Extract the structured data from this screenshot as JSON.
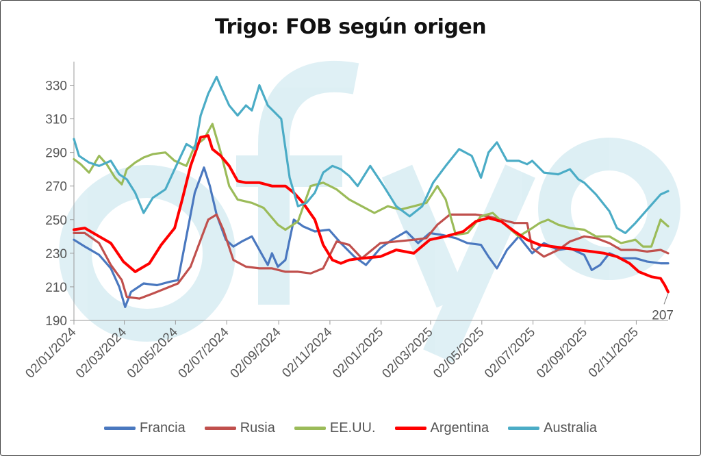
{
  "chart_data": {
    "type": "line",
    "title": "Trigo: FOB según origen",
    "xlabel": "",
    "ylabel": "",
    "ylim": [
      190,
      340
    ],
    "yticks": [
      190,
      210,
      230,
      250,
      270,
      290,
      310,
      330
    ],
    "xlim": [
      "2024-01-02",
      "2025-12-10"
    ],
    "xticks": [
      "02/01/2024",
      "02/03/2024",
      "02/05/2024",
      "02/07/2024",
      "02/09/2024",
      "02/11/2024",
      "02/01/2025",
      "02/03/2025",
      "02/05/2025",
      "02/07/2025",
      "02/09/2025",
      "02/11/2025"
    ],
    "annotation": "207",
    "legend_position": "bottom",
    "series": [
      {
        "name": "Francia",
        "color": "#4a78bf",
        "x": [
          "2024-01-02",
          "2024-01-15",
          "2024-02-01",
          "2024-02-15",
          "2024-02-25",
          "2024-03-03",
          "2024-03-10",
          "2024-03-25",
          "2024-04-10",
          "2024-04-25",
          "2024-05-05",
          "2024-05-15",
          "2024-05-25",
          "2024-06-05",
          "2024-06-12",
          "2024-06-20",
          "2024-07-01",
          "2024-07-10",
          "2024-07-20",
          "2024-08-01",
          "2024-08-10",
          "2024-08-20",
          "2024-08-25",
          "2024-09-01",
          "2024-09-10",
          "2024-09-20",
          "2024-10-01",
          "2024-10-15",
          "2024-11-01",
          "2024-11-15",
          "2024-12-01",
          "2024-12-15",
          "2025-01-01",
          "2025-01-15",
          "2025-02-01",
          "2025-02-15",
          "2025-03-01",
          "2025-03-15",
          "2025-04-01",
          "2025-04-15",
          "2025-05-01",
          "2025-05-10",
          "2025-05-20",
          "2025-06-01",
          "2025-06-15",
          "2025-07-01",
          "2025-07-15",
          "2025-08-01",
          "2025-08-15",
          "2025-09-01",
          "2025-09-10",
          "2025-09-20",
          "2025-10-01",
          "2025-10-15",
          "2025-11-01",
          "2025-11-15",
          "2025-12-01",
          "2025-12-10"
        ],
        "values": [
          238,
          234,
          229,
          221,
          210,
          198,
          207,
          212,
          211,
          213,
          214,
          240,
          266,
          281,
          270,
          253,
          238,
          234,
          237,
          240,
          232,
          223,
          230,
          222,
          226,
          250,
          246,
          243,
          244,
          236,
          228,
          223,
          233,
          238,
          243,
          236,
          242,
          241,
          239,
          236,
          235,
          228,
          221,
          232,
          240,
          230,
          236,
          232,
          233,
          229,
          220,
          223,
          230,
          227,
          227,
          225,
          224,
          224
        ]
      },
      {
        "name": "Rusia",
        "color": "#c0504d",
        "x": [
          "2024-01-02",
          "2024-01-15",
          "2024-02-01",
          "2024-02-15",
          "2024-02-28",
          "2024-03-05",
          "2024-03-20",
          "2024-04-05",
          "2024-04-20",
          "2024-05-05",
          "2024-05-20",
          "2024-06-01",
          "2024-06-10",
          "2024-06-20",
          "2024-06-28",
          "2024-07-10",
          "2024-07-25",
          "2024-08-10",
          "2024-08-25",
          "2024-09-10",
          "2024-09-25",
          "2024-10-10",
          "2024-10-25",
          "2024-11-10",
          "2024-11-25",
          "2024-12-10",
          "2025-01-01",
          "2025-01-20",
          "2025-02-10",
          "2025-02-25",
          "2025-03-10",
          "2025-03-25",
          "2025-04-10",
          "2025-04-25",
          "2025-05-10",
          "2025-05-25",
          "2025-06-10",
          "2025-06-25",
          "2025-07-01",
          "2025-07-15",
          "2025-08-01",
          "2025-08-15",
          "2025-09-01",
          "2025-09-15",
          "2025-10-01",
          "2025-10-15",
          "2025-11-01",
          "2025-11-15",
          "2025-12-01",
          "2025-12-10"
        ],
        "values": [
          242,
          242,
          236,
          223,
          214,
          204,
          203,
          206,
          209,
          212,
          222,
          238,
          250,
          253,
          244,
          226,
          222,
          221,
          221,
          219,
          219,
          218,
          221,
          237,
          235,
          227,
          236,
          237,
          238,
          239,
          247,
          253,
          253,
          253,
          252,
          250,
          248,
          248,
          233,
          228,
          232,
          237,
          240,
          239,
          236,
          232,
          232,
          231,
          232,
          230
        ]
      },
      {
        "name": "EE.UU.",
        "color": "#9bbb59",
        "x": [
          "2024-01-02",
          "2024-01-10",
          "2024-01-20",
          "2024-02-01",
          "2024-02-10",
          "2024-02-20",
          "2024-02-28",
          "2024-03-05",
          "2024-03-15",
          "2024-03-25",
          "2024-04-05",
          "2024-04-20",
          "2024-05-01",
          "2024-05-15",
          "2024-05-25",
          "2024-06-05",
          "2024-06-15",
          "2024-06-25",
          "2024-07-05",
          "2024-07-15",
          "2024-08-01",
          "2024-08-15",
          "2024-09-01",
          "2024-09-10",
          "2024-09-25",
          "2024-10-10",
          "2024-10-25",
          "2024-11-10",
          "2024-11-25",
          "2024-12-10",
          "2024-12-25",
          "2025-01-10",
          "2025-01-25",
          "2025-02-10",
          "2025-02-25",
          "2025-03-10",
          "2025-03-20",
          "2025-04-01",
          "2025-04-15",
          "2025-05-01",
          "2025-05-15",
          "2025-06-01",
          "2025-06-15",
          "2025-07-01",
          "2025-07-10",
          "2025-07-20",
          "2025-08-01",
          "2025-08-15",
          "2025-09-01",
          "2025-09-15",
          "2025-10-01",
          "2025-10-15",
          "2025-11-01",
          "2025-11-10",
          "2025-11-20",
          "2025-12-01",
          "2025-12-10"
        ],
        "values": [
          286,
          283,
          278,
          288,
          283,
          275,
          271,
          280,
          284,
          287,
          289,
          290,
          285,
          282,
          294,
          298,
          307,
          290,
          270,
          262,
          260,
          257,
          247,
          244,
          249,
          270,
          272,
          268,
          262,
          258,
          254,
          258,
          256,
          258,
          260,
          270,
          262,
          241,
          242,
          252,
          254,
          246,
          240,
          245,
          248,
          250,
          247,
          245,
          244,
          240,
          240,
          236,
          238,
          234,
          234,
          250,
          246
        ]
      },
      {
        "name": "Argentina",
        "color": "#ff0000",
        "x": [
          "2024-01-02",
          "2024-01-15",
          "2024-02-01",
          "2024-02-15",
          "2024-03-01",
          "2024-03-15",
          "2024-04-01",
          "2024-04-15",
          "2024-05-01",
          "2024-05-10",
          "2024-05-20",
          "2024-06-01",
          "2024-06-10",
          "2024-06-15",
          "2024-06-25",
          "2024-07-05",
          "2024-07-15",
          "2024-07-25",
          "2024-08-10",
          "2024-08-25",
          "2024-09-10",
          "2024-09-20",
          "2024-10-01",
          "2024-10-15",
          "2024-10-25",
          "2024-11-05",
          "2024-11-15",
          "2024-11-25",
          "2024-12-10",
          "2025-01-01",
          "2025-01-20",
          "2025-02-10",
          "2025-03-01",
          "2025-03-20",
          "2025-04-10",
          "2025-04-25",
          "2025-05-10",
          "2025-05-25",
          "2025-06-10",
          "2025-06-25",
          "2025-07-10",
          "2025-07-25",
          "2025-08-10",
          "2025-08-25",
          "2025-09-10",
          "2025-09-25",
          "2025-10-10",
          "2025-10-25",
          "2025-11-05",
          "2025-11-20",
          "2025-12-01",
          "2025-12-06",
          "2025-12-10"
        ],
        "values": [
          244,
          245,
          240,
          236,
          225,
          219,
          224,
          235,
          245,
          262,
          282,
          299,
          300,
          292,
          288,
          282,
          273,
          272,
          272,
          270,
          270,
          266,
          260,
          250,
          235,
          226,
          224,
          226,
          227,
          228,
          232,
          230,
          238,
          240,
          243,
          249,
          251,
          249,
          243,
          238,
          235,
          234,
          233,
          232,
          231,
          230,
          228,
          224,
          219,
          216,
          215,
          211,
          207
        ]
      },
      {
        "name": "Australia",
        "color": "#4bacc6",
        "x": [
          "2024-01-02",
          "2024-01-08",
          "2024-01-20",
          "2024-02-01",
          "2024-02-15",
          "2024-02-25",
          "2024-03-05",
          "2024-03-15",
          "2024-03-25",
          "2024-04-05",
          "2024-04-20",
          "2024-05-01",
          "2024-05-15",
          "2024-05-25",
          "2024-06-01",
          "2024-06-10",
          "2024-06-20",
          "2024-06-25",
          "2024-07-05",
          "2024-07-15",
          "2024-07-25",
          "2024-08-01",
          "2024-08-10",
          "2024-08-20",
          "2024-08-28",
          "2024-09-05",
          "2024-09-15",
          "2024-09-25",
          "2024-10-05",
          "2024-10-15",
          "2024-10-25",
          "2024-11-05",
          "2024-11-15",
          "2024-11-25",
          "2024-12-05",
          "2024-12-20",
          "2025-01-05",
          "2025-01-20",
          "2025-02-05",
          "2025-02-20",
          "2025-03-05",
          "2025-03-20",
          "2025-04-05",
          "2025-04-20",
          "2025-05-01",
          "2025-05-10",
          "2025-05-20",
          "2025-06-01",
          "2025-06-15",
          "2025-06-25",
          "2025-07-01",
          "2025-07-15",
          "2025-08-01",
          "2025-08-15",
          "2025-08-25",
          "2025-09-01",
          "2025-09-15",
          "2025-10-01",
          "2025-10-10",
          "2025-10-20",
          "2025-11-01",
          "2025-11-15",
          "2025-12-01",
          "2025-12-10"
        ],
        "values": [
          298,
          288,
          284,
          282,
          285,
          277,
          274,
          266,
          254,
          263,
          268,
          280,
          295,
          292,
          312,
          325,
          335,
          329,
          318,
          312,
          318,
          315,
          330,
          318,
          314,
          310,
          275,
          258,
          260,
          266,
          278,
          282,
          280,
          276,
          270,
          282,
          270,
          258,
          252,
          258,
          272,
          282,
          292,
          288,
          275,
          290,
          296,
          285,
          285,
          283,
          285,
          278,
          277,
          280,
          274,
          272,
          265,
          255,
          245,
          242,
          248,
          256,
          265,
          267
        ]
      }
    ]
  },
  "watermark": "ofyo"
}
